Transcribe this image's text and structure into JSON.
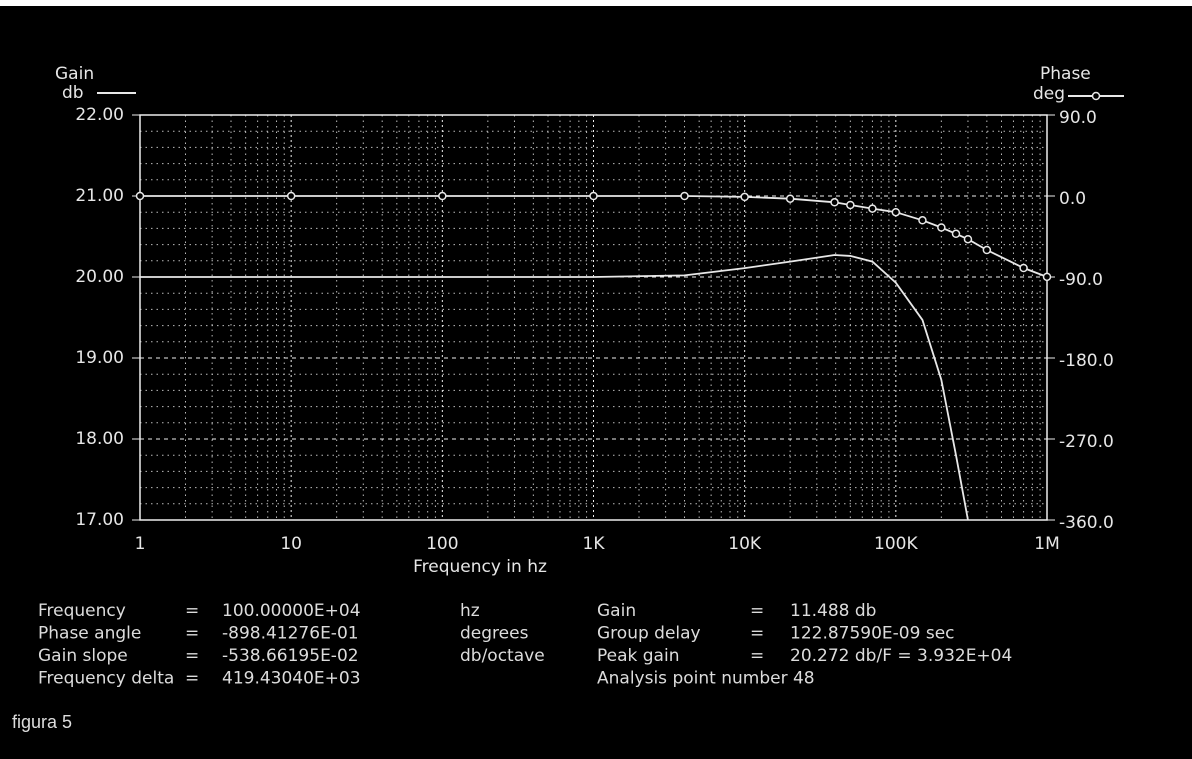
{
  "chart_data": {
    "type": "line",
    "x_label": "Frequency in hz",
    "y_label": [
      "Gain",
      "db"
    ],
    "y2_label": [
      "Phase",
      "deg"
    ],
    "log_x": true,
    "grid": true,
    "minor_grid": true,
    "xlim": [
      1,
      1000000
    ],
    "xticks": [
      1,
      10,
      100,
      {
        "value": 1000,
        "label": "1K"
      },
      {
        "value": 10000,
        "label": "10K"
      },
      {
        "value": 100000,
        "label": "100K"
      },
      {
        "value": 1000000,
        "label": "1M"
      }
    ],
    "ylim": [
      17,
      22
    ],
    "yticks": [
      {
        "value": 17,
        "label": "17.00"
      },
      {
        "value": 18,
        "label": "18.00"
      },
      {
        "value": 19,
        "label": "19.00"
      },
      {
        "value": 20,
        "label": "20.00"
      },
      {
        "value": 21,
        "label": "21.00"
      },
      {
        "value": 22,
        "label": "22.00"
      }
    ],
    "y2lim": [
      -360,
      90
    ],
    "y2ticks": [
      {
        "value": -360,
        "label": "-360.0"
      },
      {
        "value": -270,
        "label": "-270.0"
      },
      {
        "value": -180,
        "label": "-180.0"
      },
      {
        "value": -90,
        "label": "-90.0"
      },
      {
        "value": 0,
        "label": "0.0"
      },
      {
        "value": 90,
        "label": "90.0"
      }
    ],
    "x": [
      1,
      10,
      100,
      1000,
      4000,
      10000,
      20000,
      39320,
      50000,
      70000,
      100000,
      150000,
      200000,
      250000,
      300000,
      400000,
      700000,
      1000000
    ],
    "series": [
      {
        "name": "Gain",
        "color": "#e8e8e8",
        "axis": "y",
        "marker": false,
        "values": [
          20,
          20,
          20,
          20,
          20.02,
          20.11,
          20.19,
          20.272,
          20.26,
          20.19,
          19.93,
          19.47,
          18.73,
          17.8,
          17.0,
          null,
          null,
          null
        ]
      },
      {
        "name": "Phase",
        "color": "#e8e8e8",
        "axis": "y2",
        "marker": true,
        "values": [
          0,
          0,
          0,
          0,
          0,
          -1,
          -3,
          -7,
          -10,
          -14,
          -18,
          -27,
          -35,
          -42,
          -48,
          -60,
          -80,
          -89.84
        ]
      }
    ]
  },
  "readout": {
    "left": [
      [
        "Frequency",
        "=",
        "100.00000E+04",
        "hz"
      ],
      [
        "Phase angle",
        "=",
        "-898.41276E-01",
        "degrees"
      ],
      [
        "Gain slope",
        "=",
        "-538.66195E-02",
        "db/octave"
      ],
      [
        "Frequency delta",
        "=",
        "419.43040E+03"
      ]
    ],
    "right": [
      [
        "Gain",
        "=",
        "11.488 db"
      ],
      [
        "Group delay",
        "=",
        "122.87590E-09 sec"
      ],
      [
        "Peak gain",
        "=",
        "20.272 db/F =  3.932E+04"
      ],
      [
        "Analysis point number 48"
      ]
    ]
  },
  "caption": "figura 5"
}
